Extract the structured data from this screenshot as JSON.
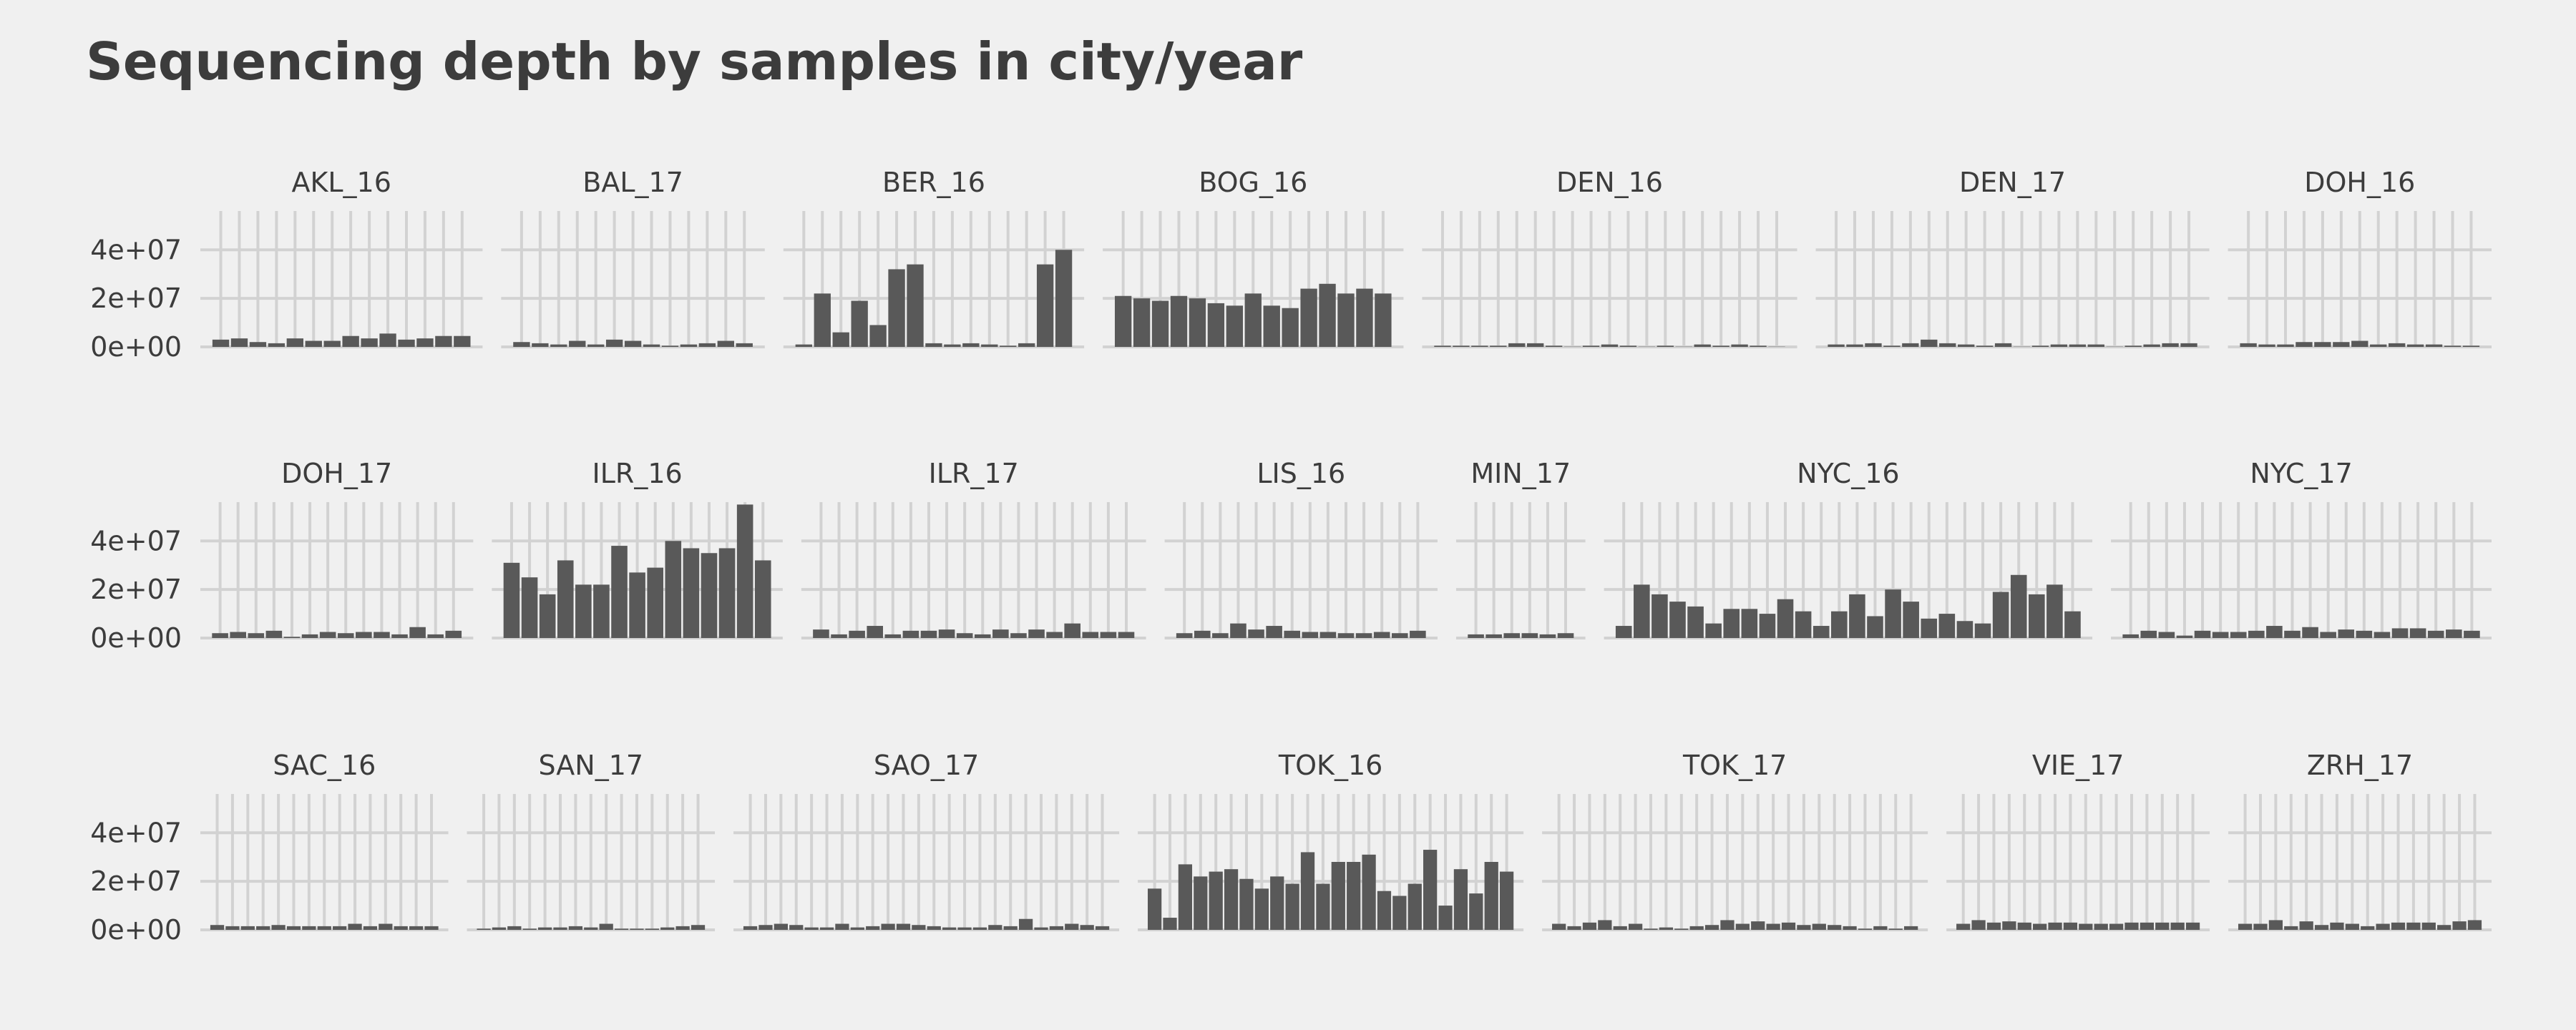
{
  "title": "Sequencing depth by samples in city/year",
  "chart_data": {
    "type": "bar",
    "title": "Sequencing depth by samples in city/year",
    "xlabel": "",
    "ylabel": "",
    "ylim": [
      0,
      56000000
    ],
    "y_ticks": [
      {
        "value": 0,
        "label": "0e+00"
      },
      {
        "value": 20000000,
        "label": "2e+07"
      },
      {
        "value": 40000000,
        "label": "4e+07"
      }
    ],
    "bar_color": "#595959",
    "grid_color": "#d2d2d2",
    "background": "#f0f0f0",
    "grid": true,
    "layout": "facet_wrap",
    "facet_rows": 3,
    "facets": [
      {
        "name": "AKL_16",
        "values": [
          3000000,
          3500000,
          2000000,
          1500000,
          3500000,
          2500000,
          2500000,
          4500000,
          3500000,
          5500000,
          3000000,
          3500000,
          4500000,
          4500000
        ]
      },
      {
        "name": "BAL_17",
        "values": [
          2000000,
          1500000,
          1000000,
          2500000,
          1000000,
          3000000,
          2500000,
          1000000,
          500000,
          1000000,
          1500000,
          2500000,
          1500000
        ]
      },
      {
        "name": "BER_16",
        "values": [
          1000000,
          22000000,
          6000000,
          19000000,
          9000000,
          32000000,
          34000000,
          1500000,
          1000000,
          1500000,
          1000000,
          500000,
          1500000,
          34000000,
          40000000
        ]
      },
      {
        "name": "BOG_16",
        "values": [
          21000000,
          20000000,
          19000000,
          21000000,
          20000000,
          18000000,
          17000000,
          22000000,
          17000000,
          16000000,
          24000000,
          26000000,
          22000000,
          24000000,
          22000000
        ]
      },
      {
        "name": "DEN_16",
        "values": [
          500000,
          500000,
          500000,
          500000,
          1500000,
          1500000,
          500000,
          100000,
          500000,
          1000000,
          500000,
          100000,
          500000,
          100000,
          1000000,
          500000,
          1000000,
          500000,
          100000
        ]
      },
      {
        "name": "DEN_17",
        "values": [
          1000000,
          1000000,
          1500000,
          500000,
          1500000,
          3000000,
          1500000,
          1000000,
          500000,
          1500000,
          100000,
          500000,
          1000000,
          1000000,
          1000000,
          100000,
          500000,
          1000000,
          1500000,
          1500000
        ]
      },
      {
        "name": "DOH_16",
        "values": [
          1500000,
          1000000,
          1000000,
          2000000,
          2000000,
          2000000,
          2500000,
          1000000,
          1500000,
          1000000,
          1000000,
          500000,
          500000
        ]
      },
      {
        "name": "DOH_17",
        "values": [
          2000000,
          2500000,
          2000000,
          3000000,
          500000,
          1500000,
          2500000,
          2000000,
          2500000,
          2500000,
          1500000,
          4500000,
          1500000,
          3000000
        ]
      },
      {
        "name": "ILR_16",
        "values": [
          31000000,
          25000000,
          18000000,
          32000000,
          22000000,
          22000000,
          38000000,
          27000000,
          29000000,
          40000000,
          37000000,
          35000000,
          37000000,
          55000000,
          32000000
        ]
      },
      {
        "name": "ILR_17",
        "values": [
          3500000,
          1500000,
          3000000,
          5000000,
          1500000,
          3000000,
          3000000,
          3500000,
          2000000,
          1500000,
          3500000,
          2000000,
          3500000,
          2500000,
          6000000,
          2500000,
          2500000,
          2500000
        ]
      },
      {
        "name": "LIS_16",
        "values": [
          2000000,
          3000000,
          2000000,
          6000000,
          3500000,
          5000000,
          3000000,
          2500000,
          2500000,
          2000000,
          2000000,
          2500000,
          2000000,
          3000000
        ]
      },
      {
        "name": "MIN_17",
        "values": [
          1500000,
          1500000,
          2000000,
          2000000,
          1500000,
          2000000
        ]
      },
      {
        "name": "NYC_16",
        "values": [
          5000000,
          22000000,
          18000000,
          15000000,
          13000000,
          6000000,
          12000000,
          12000000,
          10000000,
          16000000,
          11000000,
          5000000,
          11000000,
          18000000,
          9000000,
          20000000,
          15000000,
          8000000,
          10000000,
          7000000,
          6000000,
          19000000,
          26000000,
          18000000,
          22000000,
          11000000
        ]
      },
      {
        "name": "NYC_17",
        "values": [
          1500000,
          3000000,
          2500000,
          1000000,
          3000000,
          2500000,
          2500000,
          3000000,
          5000000,
          3000000,
          4500000,
          2500000,
          3500000,
          3000000,
          2500000,
          4000000,
          4000000,
          3000000,
          3500000,
          3000000
        ]
      },
      {
        "name": "SAC_16",
        "values": [
          2000000,
          1500000,
          1500000,
          1500000,
          2000000,
          1500000,
          1500000,
          1500000,
          1500000,
          2500000,
          1500000,
          2500000,
          1500000,
          1500000,
          1500000
        ]
      },
      {
        "name": "SAN_17",
        "values": [
          500000,
          1000000,
          1500000,
          500000,
          1000000,
          1000000,
          1500000,
          1000000,
          2500000,
          500000,
          500000,
          500000,
          1000000,
          1500000,
          2000000
        ]
      },
      {
        "name": "SAO_17",
        "values": [
          1500000,
          2000000,
          2500000,
          2000000,
          1000000,
          1000000,
          2500000,
          1000000,
          1500000,
          2500000,
          2500000,
          2000000,
          1500000,
          1000000,
          1000000,
          1000000,
          2000000,
          1500000,
          4500000,
          1000000,
          1500000,
          2500000,
          2000000,
          1500000
        ]
      },
      {
        "name": "TOK_16",
        "values": [
          17000000,
          5000000,
          27000000,
          22000000,
          24000000,
          25000000,
          21000000,
          17000000,
          22000000,
          19000000,
          32000000,
          19000000,
          28000000,
          28000000,
          31000000,
          16000000,
          14000000,
          19000000,
          33000000,
          10000000,
          25000000,
          15000000,
          28000000,
          24000000
        ]
      },
      {
        "name": "TOK_17",
        "values": [
          2500000,
          1500000,
          3000000,
          4000000,
          1500000,
          2500000,
          500000,
          1000000,
          500000,
          1500000,
          2000000,
          4000000,
          2500000,
          3500000,
          2500000,
          3000000,
          2000000,
          2500000,
          2000000,
          1500000,
          500000,
          1500000,
          500000,
          1500000
        ]
      },
      {
        "name": "VIE_17",
        "values": [
          2500000,
          4000000,
          3000000,
          3500000,
          3000000,
          2500000,
          3000000,
          3000000,
          2500000,
          2500000,
          2500000,
          3000000,
          3000000,
          3000000,
          3000000,
          3000000
        ]
      },
      {
        "name": "ZRH_17",
        "values": [
          2500000,
          2500000,
          4000000,
          1500000,
          3500000,
          2000000,
          3000000,
          2500000,
          1500000,
          2500000,
          3000000,
          3000000,
          3000000,
          2000000,
          3500000,
          4000000
        ]
      }
    ]
  }
}
